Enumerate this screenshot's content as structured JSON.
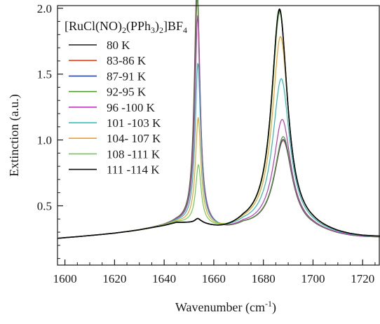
{
  "chart_data": {
    "type": "line",
    "xlabel": "Wavenumber (cm",
    "xlabel_sup": "-1",
    "xlabel_end": ")",
    "ylabel": "Extinction (a.u.)",
    "xlim": [
      1597,
      1727
    ],
    "ylim": [
      0.05,
      2.02
    ],
    "grid": false,
    "legend_placement": "top-left",
    "legend_title_parts": [
      "[RuCl(NO)",
      "2",
      "(PPh",
      "3",
      ")",
      "2",
      "]BF",
      "4"
    ],
    "x_ticks": [
      1600,
      1620,
      1640,
      1660,
      1680,
      1700,
      1720
    ],
    "y_ticks": [
      0.5,
      1.0,
      1.5,
      2.0
    ],
    "x_tick_labels": [
      "1600",
      "1620",
      "1640",
      "1660",
      "1680",
      "1700",
      "1720"
    ],
    "y_tick_labels": [
      "0.5",
      "1.0",
      "1.5",
      "2.0"
    ],
    "baseline_x": [
      1597,
      1600,
      1605,
      1610,
      1615,
      1620,
      1625,
      1630,
      1635,
      1640,
      1645
    ],
    "baseline_y": [
      0.25,
      0.255,
      0.262,
      0.27,
      0.278,
      0.287,
      0.298,
      0.31,
      0.325,
      0.34,
      0.36
    ],
    "tail_x": [
      1700,
      1705,
      1710,
      1715,
      1720,
      1727
    ],
    "tail_y": [
      0.3,
      0.285,
      0.27,
      0.26,
      0.255,
      0.255
    ],
    "series": [
      {
        "name": "80 K",
        "color": "#1a1a1a",
        "band1_center": 1653.5,
        "band1_peak": 0.03,
        "band2_center": 1686.5,
        "band2_peak": 1.97,
        "band2_width": 3.9
      },
      {
        "name": "83-86 K",
        "color": "#e8401c",
        "band1_center": 1653.2,
        "band1_peak": 1.82,
        "band2_center": 1688.0,
        "band2_peak": 0.98,
        "band2_width": 4.4
      },
      {
        "name": "87-91 K",
        "color": "#2846a0",
        "band1_center": 1653.3,
        "band1_peak": 1.8,
        "band2_center": 1688.0,
        "band2_peak": 0.99,
        "band2_width": 4.4
      },
      {
        "name": "92-95 K",
        "color": "#4e9a2e",
        "band1_center": 1653.4,
        "band1_peak": 1.75,
        "band2_center": 1688.0,
        "band2_peak": 1.01,
        "band2_width": 4.4
      },
      {
        "name": "96 -100 K",
        "color": "#b83ab8",
        "band1_center": 1653.5,
        "band1_peak": 1.58,
        "band2_center": 1687.6,
        "band2_peak": 1.14,
        "band2_width": 4.3
      },
      {
        "name": "101 -103 K",
        "color": "#2ab8b8",
        "band1_center": 1653.6,
        "band1_peak": 1.22,
        "band2_center": 1687.2,
        "band2_peak": 1.45,
        "band2_width": 4.2
      },
      {
        "name": "104- 107 K",
        "color": "#f0a020",
        "band1_center": 1653.7,
        "band1_peak": 0.8,
        "band2_center": 1686.9,
        "band2_peak": 1.77,
        "band2_width": 4.0
      },
      {
        "name": "108 -111 K",
        "color": "#6ccc50",
        "band1_center": 1653.8,
        "band1_peak": 0.44,
        "band2_center": 1686.6,
        "band2_peak": 1.95,
        "band2_width": 3.9
      },
      {
        "name": "111 -114 K",
        "color": "#0a0a0a",
        "band1_center": 1653.5,
        "band1_peak": 0.03,
        "band2_center": 1686.5,
        "band2_peak": 1.98,
        "band2_width": 3.9
      }
    ]
  }
}
